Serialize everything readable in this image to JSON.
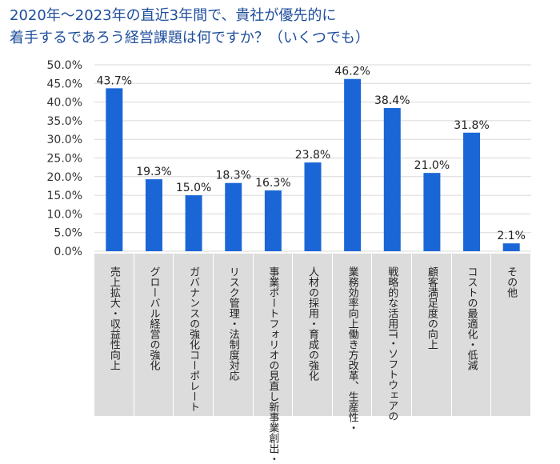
{
  "title": {
    "line1": "2020年～2023年の直近3年間で、貴社が優先的に",
    "line2": "着手するであろう経営課題は何ですか？（いくつでも）"
  },
  "colors": {
    "bar": "#1a66d6",
    "title": "#1f4e9c",
    "category_bg": "#dcdcdc",
    "grid": "#d9d9d9"
  },
  "chart_data": {
    "type": "bar",
    "title": "2020年～2023年の直近3年間で、貴社が優先的に着手するであろう経営課題は何ですか？（いくつでも）",
    "xlabel": "",
    "ylabel": "",
    "ylim": [
      0,
      50
    ],
    "yticks": [
      "0.0%",
      "5.0%",
      "10.0%",
      "15.0%",
      "20.0%",
      "25.0%",
      "30.0%",
      "35.0%",
      "40.0%",
      "45.0%",
      "50.0%"
    ],
    "grid": true,
    "categories": [
      [
        "売上拡大・収益性向上"
      ],
      [
        "グローバル経営の強化"
      ],
      [
        "コーポレート",
        "ガバナンスの強化"
      ],
      [
        "リスク管理・法制度対応"
      ],
      [
        "新事業創出・",
        "事業ポートフォリオの見直し"
      ],
      [
        "人材の採用・育成の強化"
      ],
      [
        "働き方改革、生産性・",
        "業務効率向上"
      ],
      [
        "IT・ソフトウェアの",
        "戦略的な活用"
      ],
      [
        "顧客満足度の向上"
      ],
      [
        "コストの最適化・低減"
      ],
      [
        "その他"
      ]
    ],
    "values": [
      43.7,
      19.3,
      15.0,
      18.3,
      16.3,
      23.8,
      46.2,
      38.4,
      21.0,
      31.8,
      2.1
    ],
    "value_labels": [
      "43.7%",
      "19.3%",
      "15.0%",
      "18.3%",
      "16.3%",
      "23.8%",
      "46.2%",
      "38.4%",
      "21.0%",
      "31.8%",
      "2.1%"
    ]
  }
}
